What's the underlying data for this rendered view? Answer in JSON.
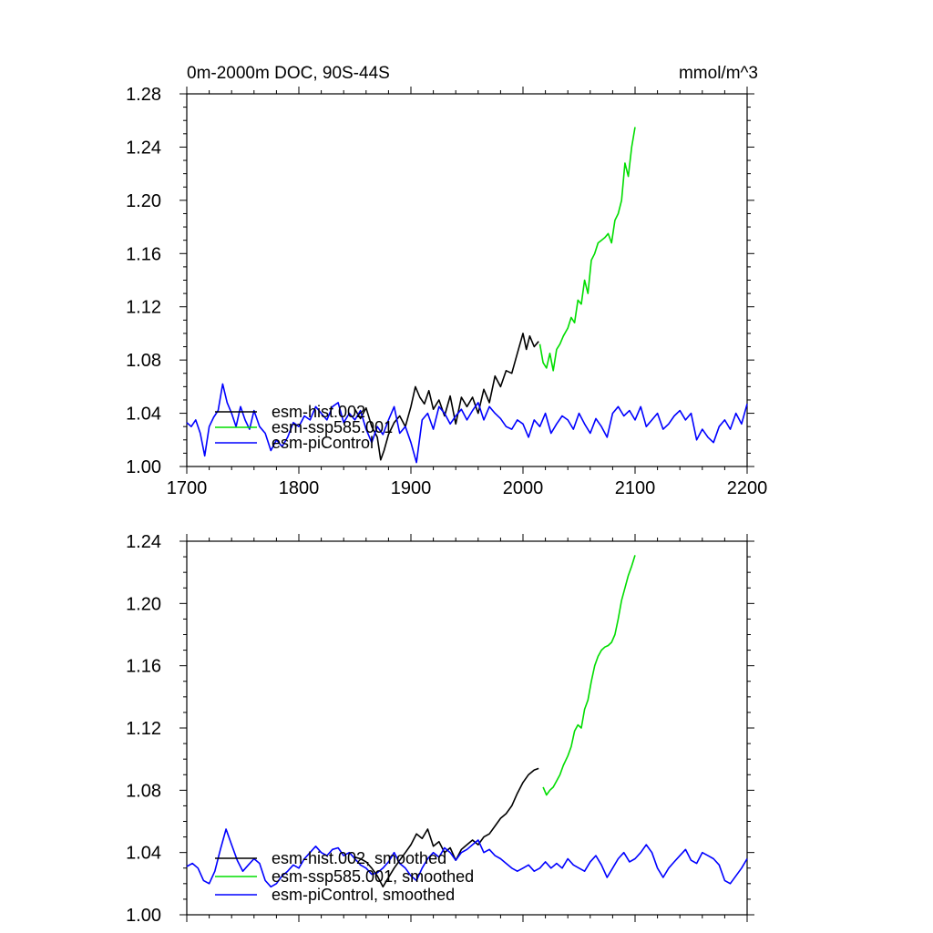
{
  "chart_data": [
    {
      "type": "line",
      "title": "0m-2000m DOC, 90S-44S",
      "units": "mmol/m^3",
      "xlim": [
        1700,
        2200
      ],
      "ylim": [
        1.0,
        1.28
      ],
      "xticks": [
        1700,
        1800,
        1900,
        2000,
        2100,
        2200
      ],
      "xtick_labels": [
        "1700",
        "1800",
        "1900",
        "2000",
        "2100",
        "2200"
      ],
      "yticks": [
        1.0,
        1.04,
        1.08,
        1.12,
        1.16,
        1.2,
        1.24,
        1.28
      ],
      "ytick_labels": [
        "1.00",
        "1.04",
        "1.08",
        "1.12",
        "1.16",
        "1.20",
        "1.24",
        "1.28"
      ],
      "grid": false,
      "legend_position": "bottom-left",
      "series": [
        {
          "name": "esm-hist.002",
          "color": "#000000",
          "x": [
            1850,
            1855,
            1860,
            1865,
            1870,
            1873,
            1876,
            1880,
            1885,
            1890,
            1895,
            1900,
            1904,
            1908,
            1912,
            1916,
            1920,
            1925,
            1930,
            1935,
            1940,
            1945,
            1950,
            1955,
            1960,
            1965,
            1970,
            1975,
            1980,
            1985,
            1990,
            1995,
            2000,
            2003,
            2006,
            2010,
            2014
          ],
          "y": [
            1.043,
            1.036,
            1.044,
            1.03,
            1.022,
            1.005,
            1.012,
            1.024,
            1.033,
            1.038,
            1.03,
            1.045,
            1.06,
            1.052,
            1.047,
            1.057,
            1.043,
            1.05,
            1.038,
            1.053,
            1.032,
            1.052,
            1.045,
            1.052,
            1.04,
            1.058,
            1.048,
            1.068,
            1.06,
            1.072,
            1.07,
            1.085,
            1.1,
            1.088,
            1.098,
            1.09,
            1.094
          ]
        },
        {
          "name": "esm-ssp585.001",
          "color": "#00dd00",
          "x": [
            2015,
            2018,
            2021,
            2024,
            2027,
            2030,
            2033,
            2036,
            2040,
            2043,
            2046,
            2049,
            2052,
            2055,
            2058,
            2061,
            2064,
            2067,
            2070,
            2073,
            2076,
            2079,
            2082,
            2085,
            2088,
            2091,
            2094,
            2097,
            2100
          ],
          "y": [
            1.092,
            1.078,
            1.074,
            1.085,
            1.072,
            1.088,
            1.092,
            1.098,
            1.104,
            1.112,
            1.108,
            1.125,
            1.122,
            1.14,
            1.13,
            1.155,
            1.16,
            1.168,
            1.17,
            1.172,
            1.175,
            1.168,
            1.185,
            1.19,
            1.2,
            1.228,
            1.218,
            1.24,
            1.255
          ]
        },
        {
          "name": "esm-piControl",
          "color": "#0000ff",
          "x": [
            1700,
            1704,
            1708,
            1712,
            1716,
            1720,
            1724,
            1728,
            1732,
            1736,
            1740,
            1744,
            1748,
            1752,
            1756,
            1760,
            1765,
            1770,
            1775,
            1780,
            1785,
            1790,
            1795,
            1800,
            1805,
            1810,
            1815,
            1820,
            1825,
            1830,
            1835,
            1840,
            1845,
            1850,
            1855,
            1860,
            1865,
            1870,
            1875,
            1880,
            1885,
            1890,
            1895,
            1900,
            1905,
            1910,
            1915,
            1920,
            1925,
            1930,
            1935,
            1940,
            1945,
            1950,
            1955,
            1960,
            1965,
            1970,
            1975,
            1980,
            1985,
            1990,
            1995,
            2000,
            2005,
            2010,
            2015,
            2020,
            2025,
            2030,
            2035,
            2040,
            2045,
            2050,
            2055,
            2060,
            2065,
            2070,
            2075,
            2080,
            2085,
            2090,
            2095,
            2100,
            2105,
            2110,
            2115,
            2120,
            2125,
            2130,
            2135,
            2140,
            2145,
            2150,
            2155,
            2160,
            2165,
            2170,
            2175,
            2180,
            2185,
            2190,
            2195,
            2200
          ],
          "y": [
            1.033,
            1.03,
            1.035,
            1.025,
            1.008,
            1.03,
            1.037,
            1.042,
            1.062,
            1.048,
            1.04,
            1.03,
            1.045,
            1.035,
            1.028,
            1.042,
            1.03,
            1.025,
            1.012,
            1.02,
            1.015,
            1.022,
            1.033,
            1.03,
            1.038,
            1.035,
            1.045,
            1.04,
            1.035,
            1.045,
            1.048,
            1.033,
            1.04,
            1.035,
            1.042,
            1.028,
            1.018,
            1.03,
            1.024,
            1.035,
            1.045,
            1.025,
            1.03,
            1.018,
            1.003,
            1.035,
            1.04,
            1.028,
            1.045,
            1.04,
            1.032,
            1.038,
            1.043,
            1.035,
            1.042,
            1.048,
            1.035,
            1.045,
            1.04,
            1.036,
            1.03,
            1.028,
            1.035,
            1.032,
            1.022,
            1.035,
            1.03,
            1.04,
            1.025,
            1.032,
            1.038,
            1.035,
            1.028,
            1.04,
            1.032,
            1.025,
            1.036,
            1.03,
            1.022,
            1.04,
            1.045,
            1.038,
            1.042,
            1.035,
            1.045,
            1.03,
            1.035,
            1.04,
            1.028,
            1.032,
            1.038,
            1.042,
            1.035,
            1.04,
            1.02,
            1.028,
            1.022,
            1.018,
            1.03,
            1.035,
            1.028,
            1.04,
            1.032,
            1.047
          ]
        }
      ]
    },
    {
      "type": "line",
      "title": "",
      "units": "",
      "xlim": [
        1700,
        2200
      ],
      "ylim": [
        1.0,
        1.24
      ],
      "xticks": [
        1700,
        1800,
        1900,
        2000,
        2100,
        2200
      ],
      "xtick_labels": [],
      "yticks": [
        1.0,
        1.04,
        1.08,
        1.12,
        1.16,
        1.2,
        1.24
      ],
      "ytick_labels": [
        "1.00",
        "1.04",
        "1.08",
        "1.12",
        "1.16",
        "1.20",
        "1.24"
      ],
      "grid": false,
      "legend_position": "bottom-left",
      "series": [
        {
          "name": "esm-hist.002, smoothed",
          "color": "#000000",
          "x": [
            1850,
            1855,
            1860,
            1865,
            1870,
            1875,
            1880,
            1885,
            1890,
            1895,
            1900,
            1905,
            1910,
            1915,
            1920,
            1925,
            1930,
            1935,
            1940,
            1945,
            1950,
            1955,
            1960,
            1965,
            1970,
            1975,
            1980,
            1985,
            1990,
            1995,
            2000,
            2005,
            2010,
            2014
          ],
          "y": [
            1.037,
            1.036,
            1.034,
            1.03,
            1.025,
            1.018,
            1.024,
            1.03,
            1.035,
            1.04,
            1.045,
            1.052,
            1.049,
            1.055,
            1.044,
            1.047,
            1.04,
            1.043,
            1.035,
            1.042,
            1.045,
            1.048,
            1.045,
            1.05,
            1.052,
            1.057,
            1.062,
            1.065,
            1.07,
            1.078,
            1.085,
            1.09,
            1.093,
            1.094
          ]
        },
        {
          "name": "esm-ssp585.001, smoothed",
          "color": "#00dd00",
          "x": [
            2018,
            2021,
            2024,
            2027,
            2030,
            2033,
            2036,
            2040,
            2043,
            2046,
            2049,
            2052,
            2055,
            2058,
            2061,
            2064,
            2067,
            2070,
            2073,
            2076,
            2079,
            2082,
            2085,
            2088,
            2091,
            2094,
            2097,
            2100
          ],
          "y": [
            1.082,
            1.077,
            1.08,
            1.082,
            1.086,
            1.09,
            1.096,
            1.102,
            1.108,
            1.118,
            1.122,
            1.12,
            1.132,
            1.138,
            1.15,
            1.16,
            1.166,
            1.17,
            1.172,
            1.173,
            1.175,
            1.18,
            1.19,
            1.202,
            1.21,
            1.218,
            1.224,
            1.231
          ]
        },
        {
          "name": "esm-piControl, smoothed",
          "color": "#0000ff",
          "x": [
            1700,
            1705,
            1710,
            1715,
            1720,
            1725,
            1730,
            1735,
            1740,
            1745,
            1750,
            1755,
            1760,
            1765,
            1770,
            1775,
            1780,
            1785,
            1790,
            1795,
            1800,
            1805,
            1810,
            1815,
            1820,
            1825,
            1830,
            1835,
            1840,
            1845,
            1850,
            1855,
            1860,
            1865,
            1870,
            1875,
            1880,
            1885,
            1890,
            1895,
            1900,
            1905,
            1910,
            1915,
            1920,
            1925,
            1930,
            1935,
            1940,
            1945,
            1950,
            1955,
            1960,
            1965,
            1970,
            1975,
            1980,
            1985,
            1990,
            1995,
            2000,
            2005,
            2010,
            2015,
            2020,
            2025,
            2030,
            2035,
            2040,
            2045,
            2050,
            2055,
            2060,
            2065,
            2070,
            2075,
            2080,
            2085,
            2090,
            2095,
            2100,
            2105,
            2110,
            2115,
            2120,
            2125,
            2130,
            2135,
            2140,
            2145,
            2150,
            2155,
            2160,
            2165,
            2170,
            2175,
            2180,
            2185,
            2190,
            2195,
            2200
          ],
          "y": [
            1.031,
            1.033,
            1.03,
            1.022,
            1.02,
            1.028,
            1.042,
            1.055,
            1.045,
            1.035,
            1.028,
            1.032,
            1.036,
            1.033,
            1.022,
            1.018,
            1.02,
            1.025,
            1.028,
            1.032,
            1.03,
            1.036,
            1.04,
            1.044,
            1.04,
            1.038,
            1.042,
            1.043,
            1.038,
            1.04,
            1.036,
            1.032,
            1.03,
            1.026,
            1.027,
            1.03,
            1.034,
            1.04,
            1.033,
            1.03,
            1.025,
            1.022,
            1.03,
            1.036,
            1.04,
            1.037,
            1.043,
            1.04,
            1.035,
            1.04,
            1.042,
            1.045,
            1.048,
            1.04,
            1.042,
            1.038,
            1.036,
            1.033,
            1.03,
            1.028,
            1.03,
            1.032,
            1.028,
            1.03,
            1.034,
            1.03,
            1.033,
            1.03,
            1.036,
            1.032,
            1.03,
            1.028,
            1.034,
            1.038,
            1.032,
            1.024,
            1.03,
            1.036,
            1.04,
            1.034,
            1.036,
            1.04,
            1.045,
            1.04,
            1.03,
            1.024,
            1.03,
            1.034,
            1.038,
            1.042,
            1.035,
            1.033,
            1.04,
            1.038,
            1.036,
            1.032,
            1.022,
            1.02,
            1.025,
            1.03,
            1.036
          ]
        }
      ]
    }
  ]
}
